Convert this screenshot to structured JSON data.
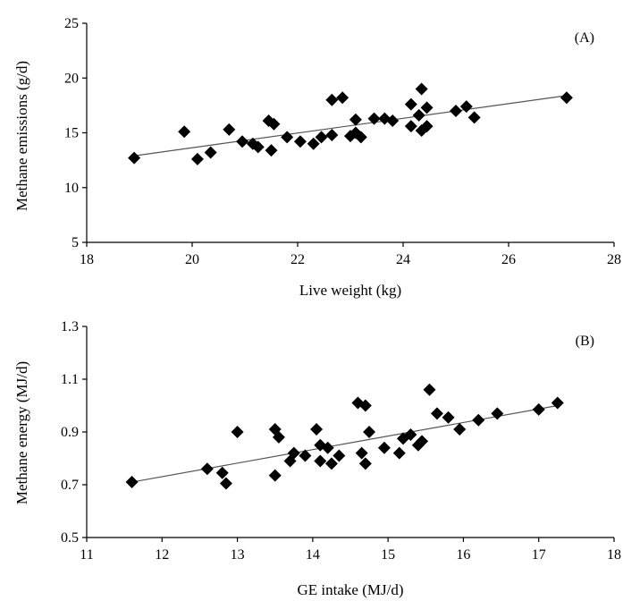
{
  "chart_data": [
    {
      "type": "scatter",
      "panel_label": "(A)",
      "xlabel": "Live weight (kg)",
      "ylabel": "Methane emissions (g/d)",
      "xlim": [
        18,
        28
      ],
      "ylim": [
        5,
        25
      ],
      "xticks": [
        18,
        20,
        22,
        24,
        26,
        28
      ],
      "yticks": [
        5,
        10,
        15,
        20,
        25
      ],
      "marker": "diamond",
      "color": "#000000",
      "grid": false,
      "trendline": {
        "x": [
          18.9,
          27.1
        ],
        "y": [
          12.9,
          18.4
        ]
      },
      "points": [
        {
          "x": 18.9,
          "y": 12.7
        },
        {
          "x": 19.85,
          "y": 15.1
        },
        {
          "x": 20.1,
          "y": 12.6
        },
        {
          "x": 20.35,
          "y": 13.2
        },
        {
          "x": 20.7,
          "y": 15.3
        },
        {
          "x": 20.95,
          "y": 14.2
        },
        {
          "x": 21.15,
          "y": 14.0
        },
        {
          "x": 21.25,
          "y": 13.7
        },
        {
          "x": 21.45,
          "y": 16.1
        },
        {
          "x": 21.55,
          "y": 15.8
        },
        {
          "x": 21.5,
          "y": 13.4
        },
        {
          "x": 21.8,
          "y": 14.6
        },
        {
          "x": 22.05,
          "y": 14.2
        },
        {
          "x": 22.3,
          "y": 14.0
        },
        {
          "x": 22.45,
          "y": 14.6
        },
        {
          "x": 22.65,
          "y": 14.8
        },
        {
          "x": 22.65,
          "y": 18.0
        },
        {
          "x": 22.85,
          "y": 18.2
        },
        {
          "x": 23.0,
          "y": 14.7
        },
        {
          "x": 23.1,
          "y": 16.2
        },
        {
          "x": 23.1,
          "y": 15.0
        },
        {
          "x": 23.2,
          "y": 14.6
        },
        {
          "x": 23.45,
          "y": 16.3
        },
        {
          "x": 23.65,
          "y": 16.3
        },
        {
          "x": 23.8,
          "y": 16.1
        },
        {
          "x": 24.15,
          "y": 17.6
        },
        {
          "x": 24.15,
          "y": 15.6
        },
        {
          "x": 24.3,
          "y": 16.6
        },
        {
          "x": 24.35,
          "y": 19.0
        },
        {
          "x": 24.35,
          "y": 15.2
        },
        {
          "x": 24.45,
          "y": 15.6
        },
        {
          "x": 24.45,
          "y": 17.3
        },
        {
          "x": 25.0,
          "y": 17.0
        },
        {
          "x": 25.2,
          "y": 17.4
        },
        {
          "x": 25.35,
          "y": 16.4
        },
        {
          "x": 27.1,
          "y": 18.2
        }
      ]
    },
    {
      "type": "scatter",
      "panel_label": "(B)",
      "xlabel": "GE intake (MJ/d)",
      "ylabel": "Methane energy (MJ/d)",
      "xlim": [
        11,
        18
      ],
      "ylim": [
        0.5,
        1.3
      ],
      "xticks": [
        11,
        12,
        13,
        14,
        15,
        16,
        17,
        18
      ],
      "yticks": [
        0.5,
        0.7,
        0.9,
        1.1,
        1.3
      ],
      "marker": "diamond",
      "color": "#000000",
      "grid": false,
      "trendline": {
        "x": [
          11.6,
          17.25
        ],
        "y": [
          0.71,
          1.0
        ]
      },
      "points": [
        {
          "x": 11.6,
          "y": 0.71
        },
        {
          "x": 12.6,
          "y": 0.76
        },
        {
          "x": 12.8,
          "y": 0.745
        },
        {
          "x": 12.85,
          "y": 0.705
        },
        {
          "x": 13.0,
          "y": 0.9
        },
        {
          "x": 13.5,
          "y": 0.91
        },
        {
          "x": 13.55,
          "y": 0.88
        },
        {
          "x": 13.5,
          "y": 0.735
        },
        {
          "x": 13.7,
          "y": 0.79
        },
        {
          "x": 13.75,
          "y": 0.82
        },
        {
          "x": 13.9,
          "y": 0.81
        },
        {
          "x": 14.05,
          "y": 0.91
        },
        {
          "x": 14.1,
          "y": 0.85
        },
        {
          "x": 14.1,
          "y": 0.79
        },
        {
          "x": 14.2,
          "y": 0.84
        },
        {
          "x": 14.25,
          "y": 0.78
        },
        {
          "x": 14.35,
          "y": 0.81
        },
        {
          "x": 14.6,
          "y": 1.01
        },
        {
          "x": 14.65,
          "y": 0.82
        },
        {
          "x": 14.7,
          "y": 1.0
        },
        {
          "x": 14.7,
          "y": 0.78
        },
        {
          "x": 14.75,
          "y": 0.9
        },
        {
          "x": 14.95,
          "y": 0.84
        },
        {
          "x": 15.15,
          "y": 0.82
        },
        {
          "x": 15.2,
          "y": 0.875
        },
        {
          "x": 15.3,
          "y": 0.89
        },
        {
          "x": 15.4,
          "y": 0.85
        },
        {
          "x": 15.45,
          "y": 0.865
        },
        {
          "x": 15.55,
          "y": 1.06
        },
        {
          "x": 15.65,
          "y": 0.97
        },
        {
          "x": 15.8,
          "y": 0.955
        },
        {
          "x": 15.95,
          "y": 0.91
        },
        {
          "x": 16.2,
          "y": 0.945
        },
        {
          "x": 16.45,
          "y": 0.97
        },
        {
          "x": 17.0,
          "y": 0.985
        },
        {
          "x": 17.25,
          "y": 1.01
        }
      ]
    }
  ]
}
